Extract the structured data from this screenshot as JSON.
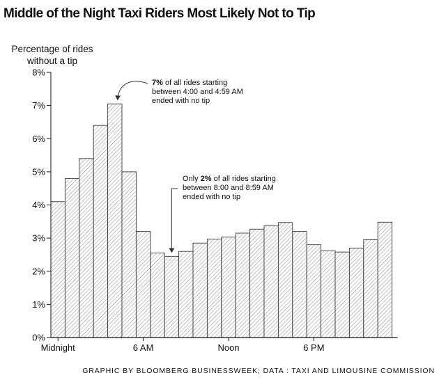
{
  "chart_data": {
    "type": "bar",
    "title": "Middle of the Night Taxi Riders Most Likely Not to Tip",
    "ylabel": [
      "Percentage of rides",
      "without a tip"
    ],
    "xlabel": "",
    "categories": [
      "0",
      "1",
      "2",
      "3",
      "4",
      "5",
      "6",
      "7",
      "8",
      "9",
      "10",
      "11",
      "12",
      "13",
      "14",
      "15",
      "16",
      "17",
      "18",
      "19",
      "20",
      "21",
      "22",
      "23"
    ],
    "x_tick_labels": [
      {
        "hour": 0,
        "label": "Midnight"
      },
      {
        "hour": 6,
        "label": "6 AM"
      },
      {
        "hour": 12,
        "label": "Noon"
      },
      {
        "hour": 18,
        "label": "6 PM"
      }
    ],
    "values": [
      4.1,
      4.8,
      5.4,
      6.4,
      7.05,
      5.0,
      3.2,
      2.55,
      2.45,
      2.6,
      2.85,
      2.97,
      3.03,
      3.15,
      3.27,
      3.37,
      3.47,
      3.2,
      2.8,
      2.62,
      2.58,
      2.7,
      2.95,
      3.48
    ],
    "ylim": [
      0,
      8
    ],
    "y_ticks": [
      "0%",
      "1%",
      "2%",
      "3%",
      "4%",
      "5%",
      "6%",
      "7%",
      "8%"
    ],
    "bar_fill": "diagonal-hatch",
    "annotations": [
      {
        "target_hour": 4,
        "bold": "7%",
        "lines": [
          " of all rides starting",
          "between 4:00 and 4:59 AM",
          "ended with no tip"
        ]
      },
      {
        "target_hour": 8,
        "pre": "Only ",
        "bold": "2%",
        "lines": [
          " of all rides starting",
          "between 8:00 and 8:59 AM",
          "ended with no tip"
        ]
      }
    ],
    "credit": "GRAPHIC BY BLOOMBERG BUSINESSWEEK; DATA : TAXI AND LIMOUSINE COMMISSION"
  }
}
